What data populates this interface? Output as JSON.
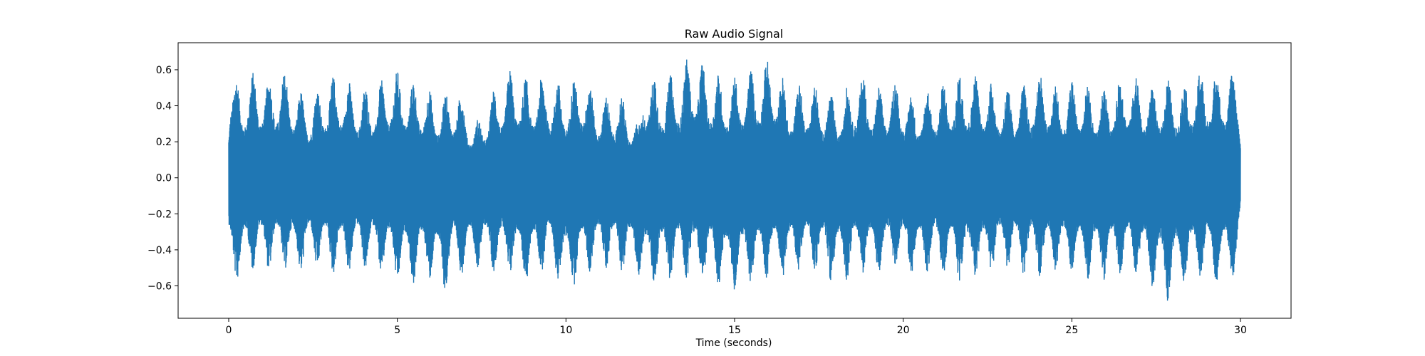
{
  "chart_data": {
    "type": "line",
    "title": "Raw Audio Signal",
    "xlabel": "Time (seconds)",
    "ylabel": "",
    "xlim": [
      -1.5,
      31.5
    ],
    "ylim": [
      -0.78,
      0.75
    ],
    "x_ticks": [
      0,
      5,
      10,
      15,
      20,
      25,
      30
    ],
    "y_ticks": [
      -0.6,
      -0.4,
      -0.2,
      0.0,
      0.2,
      0.4,
      0.6
    ],
    "x_tick_labels": [
      "0",
      "5",
      "10",
      "15",
      "20",
      "25",
      "30"
    ],
    "y_tick_labels": [
      "−0.6",
      "−0.4",
      "−0.2",
      "0.0",
      "0.2",
      "0.4",
      "0.6"
    ],
    "grid": false,
    "series": [
      {
        "color": "#1f77b4",
        "duration_seconds": 30,
        "envelope": {
          "t": [
            0.0,
            0.05,
            0.3,
            0.8,
            1.2,
            1.6,
            2.0,
            2.4,
            2.9,
            3.3,
            3.8,
            4.4,
            4.9,
            5.4,
            5.9,
            6.3,
            6.8,
            7.3,
            7.8,
            8.4,
            8.9,
            9.4,
            10.0,
            10.5,
            11.0,
            11.6,
            12.2,
            12.3,
            12.8,
            13.4,
            13.7,
            14.3,
            14.9,
            15.4,
            16.1,
            16.6,
            17.1,
            17.6,
            18.1,
            18.7,
            19.2,
            19.8,
            20.3,
            20.8,
            21.4,
            21.9,
            22.4,
            23.0,
            23.6,
            24.1,
            24.6,
            25.2,
            25.8,
            26.3,
            26.8,
            27.3,
            27.8,
            28.3,
            28.8,
            29.3,
            29.9,
            30.0
          ],
          "upper": [
            0.42,
            0.65,
            0.52,
            0.6,
            0.55,
            0.62,
            0.5,
            0.45,
            0.55,
            0.58,
            0.5,
            0.52,
            0.61,
            0.55,
            0.5,
            0.45,
            0.52,
            0.3,
            0.48,
            0.62,
            0.55,
            0.58,
            0.52,
            0.6,
            0.45,
            0.48,
            0.3,
            0.62,
            0.55,
            0.6,
            0.7,
            0.6,
            0.55,
            0.6,
            0.68,
            0.5,
            0.55,
            0.5,
            0.45,
            0.6,
            0.5,
            0.55,
            0.45,
            0.5,
            0.55,
            0.6,
            0.55,
            0.5,
            0.52,
            0.6,
            0.5,
            0.55,
            0.48,
            0.55,
            0.6,
            0.5,
            0.56,
            0.52,
            0.62,
            0.6,
            0.6,
            0.42
          ],
          "lower": [
            -0.5,
            -0.55,
            -0.58,
            -0.5,
            -0.52,
            -0.5,
            -0.55,
            -0.5,
            -0.52,
            -0.55,
            -0.5,
            -0.52,
            -0.58,
            -0.6,
            -0.55,
            -0.66,
            -0.55,
            -0.5,
            -0.52,
            -0.55,
            -0.6,
            -0.5,
            -0.64,
            -0.55,
            -0.5,
            -0.52,
            -0.55,
            -0.62,
            -0.6,
            -0.55,
            -0.58,
            -0.6,
            -0.64,
            -0.6,
            -0.55,
            -0.56,
            -0.5,
            -0.55,
            -0.6,
            -0.52,
            -0.55,
            -0.5,
            -0.55,
            -0.52,
            -0.55,
            -0.6,
            -0.55,
            -0.5,
            -0.54,
            -0.56,
            -0.52,
            -0.55,
            -0.58,
            -0.55,
            -0.52,
            -0.6,
            -0.7,
            -0.6,
            -0.55,
            -0.58,
            -0.55,
            -0.3
          ]
        }
      }
    ]
  }
}
